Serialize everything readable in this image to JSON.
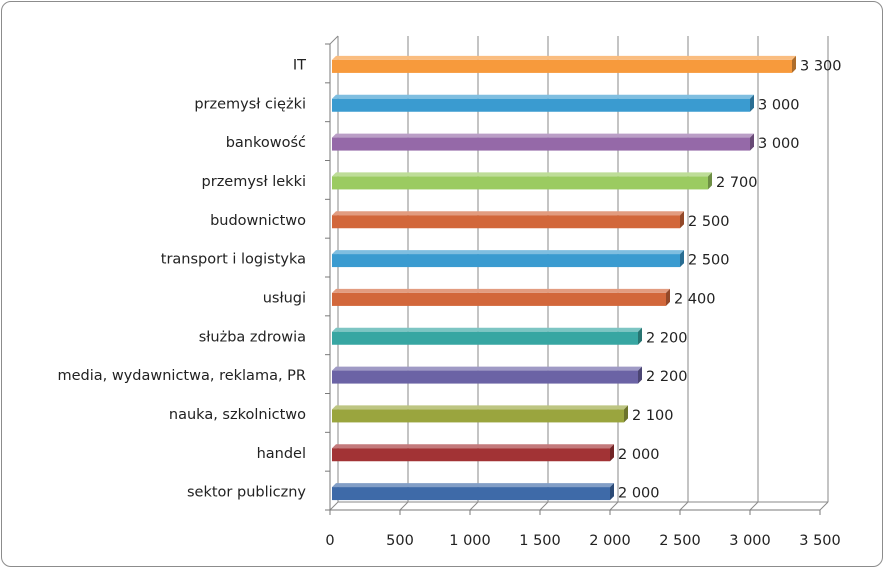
{
  "chart_data": {
    "type": "bar",
    "orientation": "horizontal",
    "categories": [
      "IT",
      "przemysł ciężki",
      "bankowość",
      "przemysł lekki",
      "budownictwo",
      "transport i logistyka",
      "usługi",
      "służba zdrowia",
      "media, wydawnictwa, reklama, PR",
      "nauka, szkolnictwo",
      "handel",
      "sektor publiczny"
    ],
    "values": [
      3300,
      3000,
      3000,
      2700,
      2500,
      2500,
      2400,
      2200,
      2200,
      2100,
      2000,
      2000
    ],
    "value_labels": [
      "3 300",
      "3 000",
      "3 000",
      "2 700",
      "2 500",
      "2 500",
      "2 400",
      "2 200",
      "2 200",
      "2 100",
      "2 000",
      "2 000"
    ],
    "colors": [
      "#f79a3c",
      "#3a9bd0",
      "#9569a8",
      "#9bcb61",
      "#d2673b",
      "#3a9bd0",
      "#d2673b",
      "#37a6a2",
      "#6b63a5",
      "#9aa53e",
      "#a23335",
      "#3e6aa8"
    ],
    "xlim": [
      0,
      3500
    ],
    "x_ticks": [
      0,
      500,
      1000,
      1500,
      2000,
      2500,
      3000,
      3500
    ],
    "x_tick_labels": [
      "0",
      "500",
      "1 000",
      "1 500",
      "2 000",
      "2 500",
      "3 000",
      "3 500"
    ],
    "grid": "vertical",
    "legend": "none",
    "title": "",
    "xlabel": "",
    "ylabel": ""
  }
}
